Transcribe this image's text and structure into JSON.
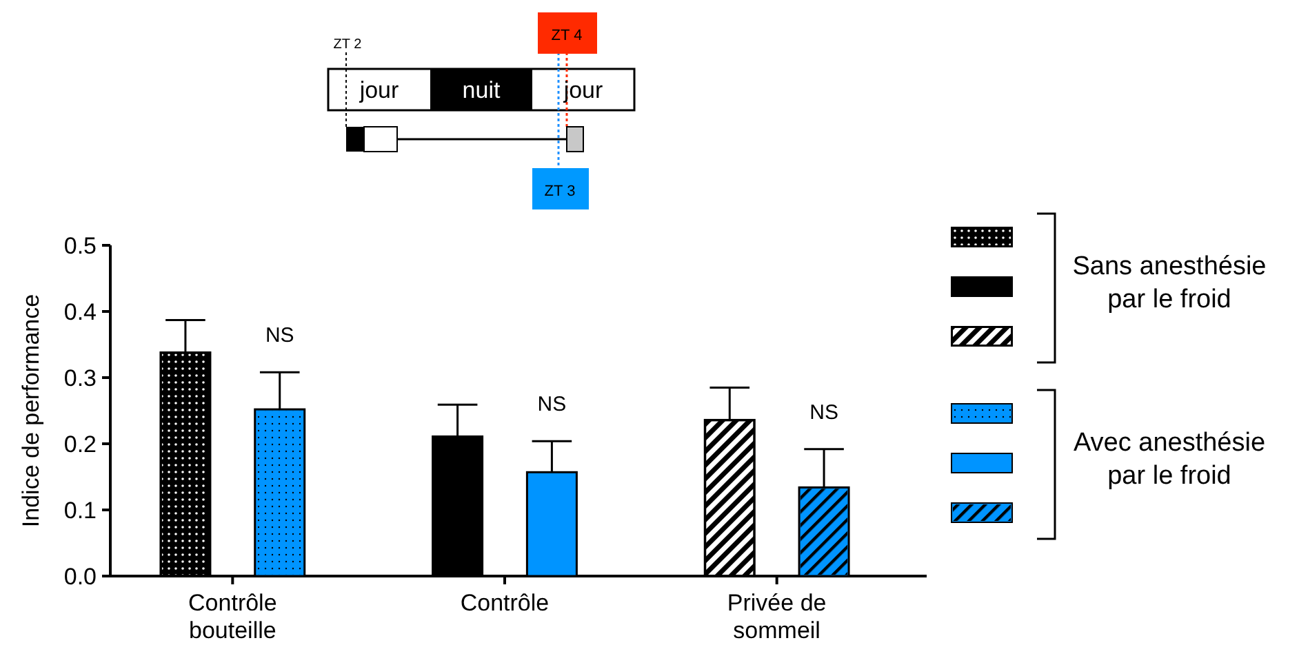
{
  "chart_data": {
    "type": "bar",
    "ylabel": "Indice de performance",
    "categories": [
      "Contrôle bouteille",
      "Contrôle",
      "Privée de sommeil"
    ],
    "series": [
      {
        "name": "Sans anesthésie par le froid",
        "color": "#000000",
        "values": [
          0.338,
          0.211,
          0.236
        ],
        "errors": [
          [
            0.338,
            0.387
          ],
          [
            0.211,
            0.259
          ],
          [
            0.236,
            0.285
          ]
        ]
      },
      {
        "name": "Avec anesthésie par le froid",
        "color": "#0094ff",
        "values": [
          0.252,
          0.157,
          0.134
        ],
        "errors": [
          [
            0.252,
            0.308
          ],
          [
            0.157,
            0.204
          ],
          [
            0.134,
            0.192
          ]
        ]
      }
    ],
    "ylim": [
      0,
      0.5
    ],
    "yticks": [
      {
        "value": 0,
        "label": "0.0"
      },
      0.1,
      0.2,
      0.3,
      0.4,
      0.5
    ],
    "grid": false,
    "legend": "right",
    "annotations": [
      "ZT 2",
      "jour",
      "nuit",
      "jour",
      "ZT 4",
      "ZT 3",
      "NS",
      "NS",
      "NS"
    ]
  }
}
